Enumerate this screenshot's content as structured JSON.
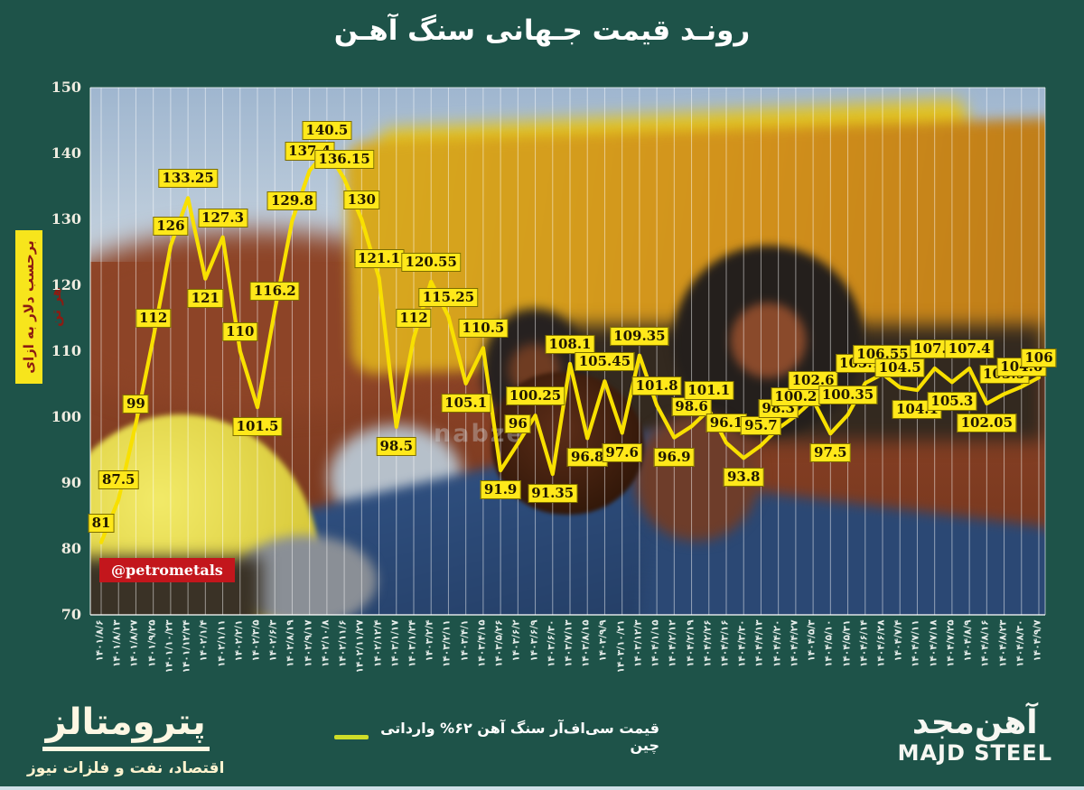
{
  "title": "رونـد قیمت جـهانی سنگ آهـن",
  "y_axis": {
    "title": "برحسب دلار به ازای هر تن",
    "ticks": [
      150,
      140,
      130,
      120,
      110,
      100,
      90,
      80,
      70
    ]
  },
  "badge": {
    "handle": "@petrometals"
  },
  "watermark": {
    "text": "nabze"
  },
  "legend": {
    "series_label": "قیمت سی‌اف‌آر سنگ آهن ۶۲% وارداتی چین"
  },
  "footer": {
    "publisher": "پترومتالز",
    "tagline": "اقتصاد، نفت و فلزات نیوز",
    "brand_fa": "آهن‌مجد",
    "brand_en": "MAJD STEEL"
  },
  "colors": {
    "background": "#1e5349",
    "line": "#f8e000",
    "label_bg": "#ffe81a",
    "label_border": "#7d6e00",
    "badge_bg": "#c3161c",
    "legend_swatch": "#cfdd28",
    "axis_title_bg": "#f7e51c",
    "axis_title_text": "#8c1b12",
    "gridline": "rgba(255,255,255,0.55)"
  },
  "chart_data": {
    "type": "line",
    "title": "رونـد قیمت جـهانی سنگ آهـن",
    "ylabel": "برحسب دلار به ازای هر تن",
    "ylim": [
      70,
      150
    ],
    "grid": "vertical-only",
    "legend_position": "bottom-center",
    "x": [
      "۱۴۰۱/۸/۶",
      "۱۴۰۱/۸/۱۳",
      "۱۴۰۱/۸/۲۷",
      "۱۴۰۱/۹/۲۵",
      "۱۴۰۱/۱۰/۲۳",
      "۱۴۰۱/۱۲/۲۴",
      "۱۴۰۲/۱/۴",
      "۱۴۰۲/۱/۱۱",
      "۱۴۰۲/۲/۱",
      "۱۴۰۲/۳/۵",
      "۱۴۰۲/۶/۳",
      "۱۴۰۲/۸/۱۹",
      "۱۴۰۲/۹/۱۷",
      "۱۴۰۲/۱۰/۸",
      "۱۴۰۲/۱۱/۶",
      "۱۴۰۲/۱۱/۲۷",
      "۱۴۰۲/۱۲/۴",
      "۱۴۰۳/۱/۱۷",
      "۱۴۰۳/۱/۲۴",
      "۱۴۰۳/۲/۴",
      "۱۴۰۳/۲/۱۱",
      "۱۴۰۳/۴/۱",
      "۱۴۰۳/۴/۱۵",
      "۱۴۰۳/۵/۲۶",
      "۱۴۰۳/۶/۲",
      "۱۴۰۳/۶/۹",
      "۱۴۰۳/۶/۳۰",
      "۱۴۰۳/۷/۱۳",
      "۱۴۰۳/۸/۱۵",
      "۱۴۰۳/۹/۹",
      "۱۴۰۳/۱۰/۲۱",
      "۱۴۰۳/۱۲/۳",
      "۱۴۰۴/۱/۱۵",
      "۱۴۰۴/۲/۱۲",
      "۱۴۰۴/۲/۱۹",
      "۱۴۰۴/۲/۲۶",
      "۱۴۰۴/۳/۱۶",
      "۱۴۰۴/۳/۳۰",
      "۱۴۰۴/۴/۱۳",
      "۱۴۰۴/۴/۲۰",
      "۱۴۰۴/۴/۲۷",
      "۱۴۰۴/۵/۳",
      "۱۴۰۴/۵/۱۰",
      "۱۴۰۴/۵/۳۱",
      "۱۴۰۴/۶/۱۴",
      "۱۴۰۴/۶/۲۸",
      "۱۴۰۴/۷/۴",
      "۱۴۰۴/۷/۱۱",
      "۱۴۰۴/۷/۱۸",
      "۱۴۰۴/۷/۲۵",
      "۱۴۰۴/۸/۹",
      "۱۴۰۴/۸/۱۶",
      "۱۴۰۴/۸/۲۳",
      "۱۴۰۴/۸/۳۰",
      "۱۴۰۴/۹/۷"
    ],
    "series": [
      {
        "name": "قیمت سی‌اف‌آر سنگ آهن ۶۲% وارداتی چین",
        "values": [
          81,
          87.5,
          99,
          112,
          126,
          133.25,
          121,
          127.3,
          110,
          101.5,
          116.2,
          129.8,
          137.4,
          140.5,
          136.15,
          130,
          121.1,
          98.5,
          112,
          120.55,
          115.25,
          105.1,
          110.5,
          91.9,
          96,
          100.25,
          91.35,
          108.1,
          96.8,
          105.45,
          97.6,
          109.35,
          101.8,
          96.9,
          98.6,
          101.1,
          96.1,
          93.8,
          95.7,
          98.3,
          100.2,
          102.6,
          97.5,
          100.35,
          105.15,
          106.55,
          104.5,
          104.1,
          107.4,
          105.3,
          107.4,
          102.05,
          103.5,
          104.6,
          106
        ]
      }
    ]
  }
}
